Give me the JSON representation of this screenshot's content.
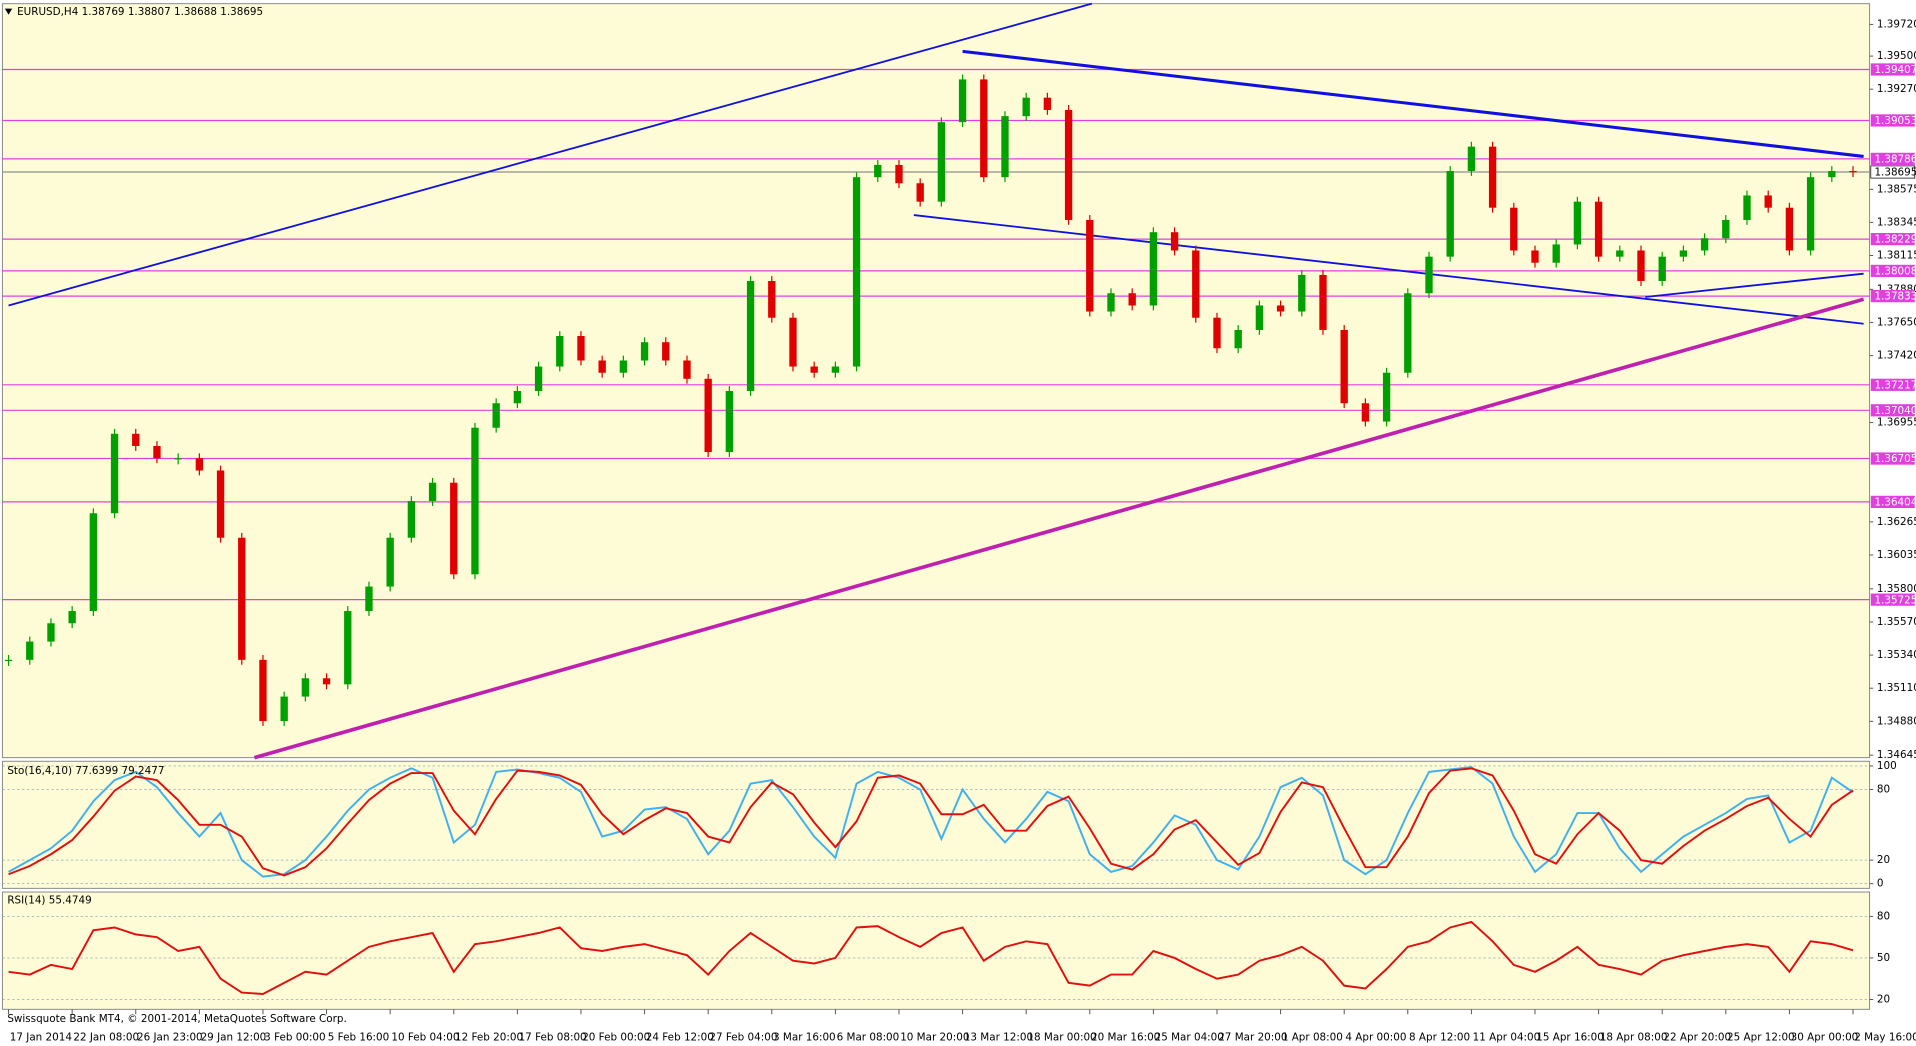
{
  "chart_data": [
    {
      "type": "candlestick",
      "title": "EURUSD,H4  1.38769 1.38807 1.38688 1.38695",
      "footer": "Swissquote Bank MT4, © 2001-2014, MetaQuotes Software Corp.",
      "categories": [
        "17 Jan 2014",
        null,
        null,
        "22 Jan 08:00",
        null,
        null,
        "26 Jan 23:00",
        null,
        null,
        "29 Jan 12:00",
        null,
        null,
        "3 Feb 00:00",
        null,
        null,
        "5 Feb 16:00",
        null,
        null,
        "10 Feb 04:00",
        null,
        null,
        "12 Feb 20:00",
        null,
        null,
        "17 Feb 08:00",
        null,
        null,
        "20 Feb 00:00",
        null,
        null,
        "24 Feb 12:00",
        null,
        null,
        "27 Feb 04:00",
        null,
        null,
        "3 Mar 16:00",
        null,
        null,
        "6 Mar 08:00",
        null,
        null,
        "10 Mar 20:00",
        null,
        null,
        "13 Mar 12:00",
        null,
        null,
        "18 Mar 00:00",
        null,
        null,
        "20 Mar 16:00",
        null,
        null,
        "25 Mar 04:00",
        null,
        null,
        "27 Mar 20:00",
        null,
        null,
        "1 Apr 08:00",
        null,
        null,
        "4 Apr 00:00",
        null,
        null,
        "8 Apr 12:00",
        null,
        null,
        "11 Apr 04:00",
        null,
        null,
        "15 Apr 16:00",
        null,
        null,
        "18 Apr 08:00",
        null,
        null,
        "22 Apr 20:00",
        null,
        null,
        "25 Apr 12:00",
        null,
        null,
        "30 Apr 00:00",
        null,
        null,
        "2 May 16:00"
      ],
      "values": [
        1.35307,
        1.35434,
        1.35561,
        1.35646,
        1.36325,
        1.36877,
        1.36792,
        1.36707,
        1.36707,
        1.36622,
        1.36155,
        1.35307,
        1.34882,
        1.35052,
        1.35179,
        1.35137,
        1.35646,
        1.35816,
        1.36155,
        1.3641,
        1.36537,
        1.35901,
        1.36919,
        1.37089,
        1.37174,
        1.37344,
        1.37556,
        1.37386,
        1.37301,
        1.37386,
        1.37513,
        1.37386,
        1.37259,
        1.3675,
        1.37174,
        1.37938,
        1.37683,
        1.37344,
        1.37301,
        1.37344,
        1.38659,
        1.38744,
        1.38617,
        1.38489,
        1.39041,
        1.39338,
        1.38659,
        1.39083,
        1.39211,
        1.39126,
        1.38362,
        1.37726,
        1.37853,
        1.37768,
        1.38277,
        1.3815,
        1.37683,
        1.37471,
        1.37598,
        1.37768,
        1.37726,
        1.3798,
        1.37598,
        1.37089,
        1.36962,
        1.37301,
        1.37853,
        1.38107,
        1.38702,
        1.38871,
        1.38447,
        1.3815,
        1.38065,
        1.38192,
        1.38489,
        1.38107,
        1.3815,
        1.37938,
        1.38107,
        1.3815,
        1.38235,
        1.38362,
        1.38532,
        1.38447,
        1.3815,
        1.38659,
        1.38702,
        1.38695
      ],
      "up_color": "#00a000",
      "down_color": "#e00000",
      "ylim": [
        1.34628,
        1.39864
      ],
      "yticks": [
        {
          "value": 1.3972,
          "label": "1.39720"
        },
        {
          "value": 1.395,
          "label": "1.39500"
        },
        {
          "value": 1.3927,
          "label": "1.39270"
        },
        1.38575,
        1.38345,
        1.38115,
        {
          "value": 1.3788,
          "label": "1.37880"
        },
        {
          "value": 1.3765,
          "label": "1.37650"
        },
        {
          "value": 1.3742,
          "label": "1.37420"
        },
        1.36955,
        1.36265,
        1.36035,
        {
          "value": 1.358,
          "label": "1.35800"
        },
        {
          "value": 1.3557,
          "label": "1.35570"
        },
        {
          "value": 1.3534,
          "label": "1.35340"
        },
        {
          "value": 1.3511,
          "label": "1.35110"
        },
        {
          "value": 1.3488,
          "label": "1.34880"
        },
        1.34645
      ],
      "levels": {
        "color": "#e040e0",
        "values": [
          1.39407,
          1.39053,
          1.38786,
          1.38229,
          1.38008,
          1.37833,
          1.37217,
          {
            "value": 1.3704,
            "label": "1.37040"
          },
          1.36705,
          1.36404,
          1.35725
        ]
      },
      "current": {
        "value": 1.38695,
        "color": "#909090"
      },
      "trendlines": [
        {
          "color": "#1010e0",
          "width": 1.5,
          "x": [
            0,
            51.1
          ],
          "y": [
            1.37768,
            1.39864
          ]
        },
        {
          "color": "#1010e0",
          "width": 2.5,
          "x": [
            45,
            87.5
          ],
          "y": [
            1.39533,
            1.38803
          ]
        },
        {
          "color": "#1010e0",
          "width": 1.5,
          "x": [
            42.7,
            87.5
          ],
          "y": [
            1.38396,
            1.37641
          ]
        },
        {
          "color": "#1010e0",
          "width": 1.5,
          "x": [
            77.2,
            87.5
          ],
          "y": [
            1.37827,
            1.37989
          ]
        },
        {
          "color": "#c020b0",
          "width": 3,
          "x": [
            11.6,
            87.5
          ],
          "y": [
            1.34628,
            1.37811
          ]
        }
      ]
    },
    {
      "type": "line",
      "title": "Sto(16,4,10) 77.6399 79.2477",
      "ylim": [
        -4,
        104
      ],
      "yticks": [
        0,
        20,
        80,
        100
      ],
      "series": [
        {
          "color": "#40b0f0",
          "values": [
            10,
            20,
            30,
            45,
            70,
            88,
            95,
            82,
            60,
            40,
            60,
            20,
            6,
            8,
            20,
            40,
            62,
            80,
            90,
            98,
            90,
            35,
            50,
            95,
            97,
            94,
            90,
            78,
            40,
            45,
            63,
            65,
            55,
            25,
            45,
            85,
            88,
            65,
            40,
            22,
            85,
            95,
            90,
            80,
            38,
            80,
            55,
            35,
            55,
            78,
            70,
            25,
            10,
            15,
            35,
            58,
            50,
            20,
            12,
            40,
            82,
            90,
            75,
            20,
            8,
            20,
            60,
            95,
            97,
            99,
            85,
            40,
            10,
            25,
            60,
            60,
            30,
            10,
            25,
            40,
            50,
            60,
            72,
            75,
            35,
            45,
            90,
            77.6399
          ]
        },
        {
          "color": "#e01010",
          "values": [
            8,
            15,
            25,
            37,
            57,
            79,
            91,
            88,
            71,
            50,
            50,
            40,
            13,
            7,
            14,
            30,
            51,
            71,
            85,
            94,
            94,
            62,
            42,
            72,
            96,
            95,
            92,
            84,
            59,
            42,
            54,
            64,
            60,
            40,
            35,
            65,
            86,
            76,
            52,
            31,
            53,
            90,
            92,
            85,
            59,
            59,
            67,
            45,
            45,
            66,
            74,
            47,
            17,
            12,
            25,
            46,
            54,
            35,
            16,
            26,
            61,
            86,
            82,
            47,
            14,
            14,
            40,
            77,
            96,
            98,
            92,
            62,
            25,
            17,
            42,
            60,
            45,
            20,
            17,
            32,
            45,
            55,
            66,
            73,
            55,
            40,
            67,
            79.2477
          ]
        }
      ]
    },
    {
      "type": "line",
      "title": "RSI(14) 55.4749",
      "ylim": [
        12.9,
        97.6
      ],
      "yticks": [
        20,
        50,
        80
      ],
      "series": [
        {
          "color": "#e01010",
          "values": [
            40,
            38,
            45,
            42,
            70,
            72,
            67,
            65,
            55,
            58,
            35,
            25,
            24,
            32,
            40,
            38,
            48,
            58,
            62,
            65,
            68,
            40,
            60,
            62,
            65,
            68,
            72,
            57,
            55,
            58,
            60,
            56,
            52,
            38,
            55,
            68,
            58,
            48,
            46,
            50,
            72,
            73,
            65,
            58,
            68,
            72,
            48,
            58,
            62,
            60,
            32,
            30,
            38,
            38,
            55,
            50,
            42,
            35,
            38,
            48,
            52,
            58,
            48,
            30,
            28,
            42,
            58,
            62,
            72,
            76,
            62,
            45,
            40,
            48,
            58,
            45,
            42,
            38,
            48,
            52,
            55,
            58,
            60,
            58,
            40,
            62,
            60,
            55.4749
          ]
        }
      ]
    }
  ]
}
